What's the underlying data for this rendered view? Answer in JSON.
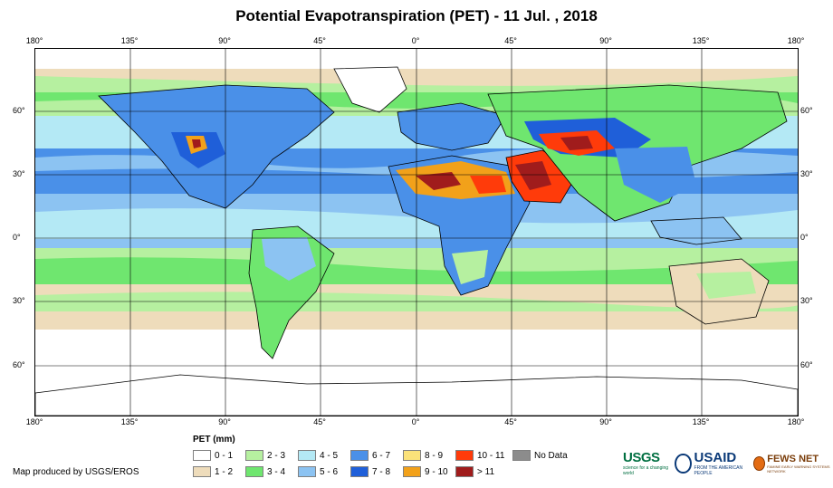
{
  "title": "Potential Evapotranspiration (PET) - 11 Jul. , 2018",
  "map": {
    "lon_ticks": [
      "180°",
      "135°",
      "90°",
      "45°",
      "0°",
      "45°",
      "90°",
      "135°",
      "180°"
    ],
    "lat_ticks": [
      "60°",
      "30°",
      "0°",
      "30°",
      "60°"
    ],
    "lon_range": [
      -180,
      180
    ],
    "lat_range": [
      -85,
      88
    ]
  },
  "legend": {
    "title": "PET (mm)",
    "items": [
      {
        "label": "0 - 1",
        "color": "#ffffff"
      },
      {
        "label": "1 - 2",
        "color": "#eedcbb"
      },
      {
        "label": "2 - 3",
        "color": "#b6f0a0"
      },
      {
        "label": "3 - 4",
        "color": "#6fe66f"
      },
      {
        "label": "4 - 5",
        "color": "#b4e9f5"
      },
      {
        "label": "5 - 6",
        "color": "#8cc3f2"
      },
      {
        "label": "6 - 7",
        "color": "#4a90e8"
      },
      {
        "label": "7 - 8",
        "color": "#1f5fd9"
      },
      {
        "label": "8 - 9",
        "color": "#fbe27a"
      },
      {
        "label": "9 - 10",
        "color": "#f2a11a"
      },
      {
        "label": "10 - 11",
        "color": "#ff3b0a"
      },
      {
        "label": "> 11",
        "color": "#a01c1c"
      },
      {
        "label": "No Data",
        "color": "#8c8c8c"
      }
    ]
  },
  "credit": "Map produced by USGS/EROS",
  "logos": {
    "usgs": {
      "text": "USGS",
      "tagline": "science for a changing world"
    },
    "usaid": {
      "text": "USAID",
      "tagline": "FROM THE AMERICAN PEOPLE"
    },
    "fews": {
      "text": "FEWS NET",
      "tagline": "FAMINE EARLY WARNING SYSTEMS NETWORK"
    }
  }
}
